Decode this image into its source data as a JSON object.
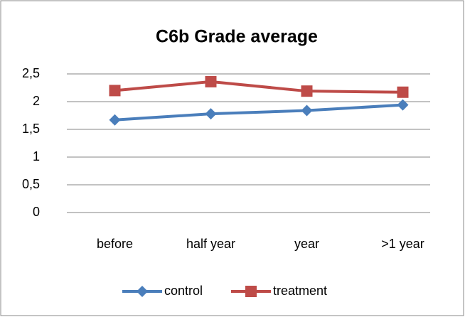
{
  "chart_data": {
    "type": "line",
    "title": "C6b Grade average",
    "categories": [
      "before",
      "half year",
      "year",
      ">1 year"
    ],
    "series": [
      {
        "name": "control",
        "color": "#4a7ebb",
        "marker": "diamond",
        "values": [
          1.67,
          1.78,
          1.84,
          1.94
        ]
      },
      {
        "name": "treatment",
        "color": "#be4b48",
        "marker": "square",
        "values": [
          2.2,
          2.36,
          2.19,
          2.17
        ]
      }
    ],
    "ylim": [
      0,
      2.5
    ],
    "yticks": [
      0,
      {
        "value": 0.5,
        "label": "0,5"
      },
      1,
      {
        "value": 1.5,
        "label": "1,5"
      },
      2,
      {
        "value": 2.5,
        "label": "2,5"
      }
    ],
    "grid": true,
    "legend": "bottom"
  }
}
